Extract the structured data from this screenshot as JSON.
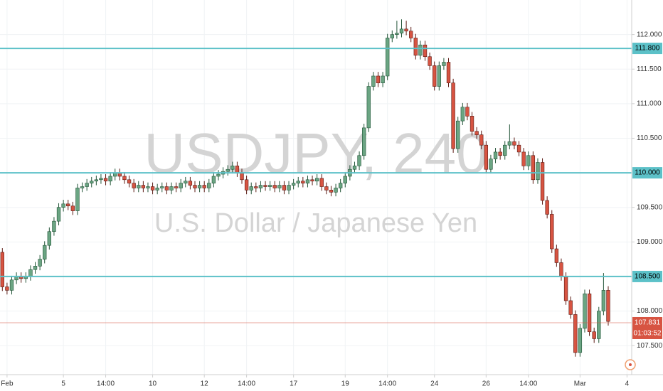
{
  "chart_data": {
    "type": "candlestick",
    "watermark_title": "USDJPY, 240",
    "watermark_subtitle": "U.S. Dollar / Japanese Yen",
    "open": [
      108.85,
      108.35,
      108.3,
      108.45,
      108.5,
      108.47,
      108.5,
      108.6,
      108.65,
      108.75,
      108.95,
      109.15,
      109.3,
      109.5,
      109.55,
      109.52,
      109.45,
      109.78,
      109.8,
      109.85,
      109.88,
      109.9,
      109.92,
      109.88,
      109.95,
      110.0,
      109.95,
      109.9,
      109.85,
      109.78,
      109.82,
      109.78,
      109.8,
      109.75,
      109.78,
      109.8,
      109.75,
      109.8,
      109.78,
      109.85,
      109.88,
      109.82,
      109.78,
      109.82,
      109.78,
      109.85,
      109.95,
      109.98,
      110.02,
      110.05,
      110.1,
      110.0,
      109.9,
      109.75,
      109.8,
      109.78,
      109.82,
      109.8,
      109.82,
      109.78,
      109.82,
      109.75,
      109.82,
      109.85,
      109.88,
      109.85,
      109.9,
      109.88,
      109.92,
      109.8,
      109.75,
      109.72,
      109.78,
      109.85,
      109.95,
      110.05,
      110.1,
      110.25,
      110.65,
      111.25,
      111.4,
      111.3,
      111.4,
      111.95,
      112.0,
      112.02,
      112.08,
      112.05,
      111.95,
      111.7,
      111.85,
      111.68,
      111.55,
      111.25,
      111.55,
      111.6,
      111.3,
      110.35,
      110.75,
      110.95,
      110.82,
      110.6,
      110.55,
      110.4,
      110.05,
      110.2,
      110.3,
      110.25,
      110.4,
      110.45,
      110.4,
      110.3,
      110.1,
      110.25,
      109.9,
      110.15,
      109.6,
      109.4,
      108.9,
      108.7,
      108.5,
      108.15,
      107.95,
      107.4,
      107.75,
      108.25,
      107.7,
      107.6,
      108.0,
      108.3
    ],
    "high": [
      108.91,
      108.41,
      108.51,
      108.56,
      108.56,
      108.56,
      108.66,
      108.71,
      108.81,
      109.01,
      109.21,
      109.36,
      109.56,
      109.61,
      109.61,
      109.58,
      109.84,
      109.86,
      109.91,
      109.94,
      109.96,
      109.98,
      109.98,
      110.01,
      110.06,
      110.06,
      110.01,
      109.96,
      109.91,
      109.88,
      109.88,
      109.86,
      109.86,
      109.84,
      109.86,
      109.86,
      109.86,
      109.86,
      109.91,
      109.94,
      109.94,
      109.88,
      109.88,
      109.88,
      109.91,
      110.01,
      110.04,
      110.08,
      110.11,
      110.16,
      110.16,
      110.06,
      109.96,
      109.86,
      109.86,
      109.88,
      109.88,
      109.88,
      109.88,
      109.88,
      109.88,
      109.88,
      109.91,
      109.94,
      109.94,
      109.96,
      109.96,
      109.98,
      109.98,
      109.86,
      109.81,
      109.84,
      109.91,
      110.01,
      110.11,
      110.16,
      110.31,
      110.71,
      111.31,
      111.46,
      111.46,
      111.46,
      112.01,
      112.06,
      112.2,
      112.22,
      112.2,
      112.11,
      112.01,
      111.91,
      111.91,
      111.74,
      111.61,
      111.61,
      111.66,
      111.66,
      111.36,
      110.81,
      111.01,
      111.01,
      110.88,
      110.66,
      110.61,
      110.46,
      110.26,
      110.36,
      110.36,
      110.46,
      110.7,
      110.51,
      110.46,
      110.36,
      110.31,
      110.31,
      110.21,
      110.21,
      109.66,
      109.46,
      108.96,
      108.76,
      108.56,
      108.21,
      108.01,
      107.81,
      108.31,
      108.31,
      107.76,
      108.06,
      108.55,
      108.36
    ],
    "low": [
      108.29,
      108.24,
      108.24,
      108.39,
      108.41,
      108.41,
      108.44,
      108.54,
      108.59,
      108.69,
      108.89,
      109.09,
      109.24,
      109.44,
      109.46,
      109.39,
      109.39,
      109.72,
      109.74,
      109.79,
      109.82,
      109.84,
      109.82,
      109.82,
      109.89,
      109.89,
      109.84,
      109.79,
      109.72,
      109.72,
      109.72,
      109.72,
      109.69,
      109.69,
      109.72,
      109.69,
      109.69,
      109.72,
      109.72,
      109.79,
      109.76,
      109.72,
      109.72,
      109.72,
      109.72,
      109.79,
      109.89,
      109.92,
      109.96,
      109.99,
      109.94,
      109.84,
      109.69,
      109.69,
      109.72,
      109.72,
      109.74,
      109.74,
      109.72,
      109.72,
      109.69,
      109.69,
      109.76,
      109.79,
      109.79,
      109.79,
      109.82,
      109.82,
      109.74,
      109.69,
      109.66,
      109.66,
      109.72,
      109.79,
      109.89,
      109.99,
      110.04,
      110.19,
      110.59,
      111.19,
      111.24,
      111.24,
      111.34,
      111.89,
      111.94,
      111.96,
      111.99,
      111.89,
      111.64,
      111.64,
      111.62,
      111.49,
      111.19,
      111.19,
      111.49,
      111.24,
      110.29,
      110.29,
      110.69,
      110.76,
      110.54,
      110.49,
      110.34,
      109.99,
      109.99,
      110.14,
      110.19,
      110.19,
      110.34,
      110.34,
      110.24,
      110.04,
      110.04,
      109.84,
      109.84,
      109.54,
      109.34,
      108.84,
      108.64,
      108.44,
      108.09,
      107.89,
      107.34,
      107.34,
      107.69,
      107.64,
      107.54,
      107.54,
      107.94,
      107.79
    ],
    "close": [
      108.35,
      108.3,
      108.45,
      108.5,
      108.47,
      108.5,
      108.6,
      108.65,
      108.75,
      108.95,
      109.15,
      109.3,
      109.5,
      109.55,
      109.52,
      109.45,
      109.78,
      109.8,
      109.85,
      109.88,
      109.9,
      109.92,
      109.88,
      109.95,
      110.0,
      109.95,
      109.9,
      109.85,
      109.78,
      109.82,
      109.78,
      109.8,
      109.75,
      109.78,
      109.8,
      109.75,
      109.8,
      109.78,
      109.85,
      109.88,
      109.82,
      109.78,
      109.82,
      109.78,
      109.85,
      109.95,
      109.98,
      110.02,
      110.05,
      110.1,
      110.0,
      109.9,
      109.75,
      109.8,
      109.78,
      109.82,
      109.8,
      109.82,
      109.78,
      109.82,
      109.75,
      109.82,
      109.85,
      109.88,
      109.85,
      109.9,
      109.88,
      109.92,
      109.8,
      109.75,
      109.72,
      109.78,
      109.85,
      109.95,
      110.05,
      110.1,
      110.25,
      110.65,
      111.25,
      111.4,
      111.3,
      111.4,
      111.95,
      112.0,
      112.02,
      112.08,
      112.05,
      111.95,
      111.7,
      111.85,
      111.68,
      111.55,
      111.25,
      111.55,
      111.6,
      111.3,
      110.35,
      110.75,
      110.95,
      110.82,
      110.6,
      110.55,
      110.4,
      110.05,
      110.2,
      110.3,
      110.25,
      110.4,
      110.45,
      110.4,
      110.3,
      110.1,
      110.25,
      109.9,
      110.15,
      109.6,
      109.4,
      108.9,
      108.7,
      108.5,
      108.15,
      107.95,
      107.4,
      107.75,
      108.25,
      107.7,
      107.6,
      108.0,
      108.3,
      107.85
    ],
    "up_color": "#6ba583",
    "down_color": "#d75442",
    "up_border": "#225437",
    "down_border": "#5b1a13",
    "ylim": [
      107.08,
      112.5
    ],
    "yticks": [
      {
        "value": 107.5,
        "label": "107.500"
      },
      {
        "value": 108,
        "label": "108.000"
      },
      {
        "value": 109,
        "label": "109.000"
      },
      {
        "value": 109.5,
        "label": "109.500"
      },
      {
        "value": 110.5,
        "label": "110.500"
      },
      {
        "value": 111,
        "label": "111.000"
      },
      {
        "value": 111.5,
        "label": "111.500"
      },
      {
        "value": 112,
        "label": "112.000"
      }
    ],
    "xlim": [
      -0.5,
      134
    ],
    "xticks": [
      {
        "value": 1,
        "label": "Feb"
      },
      {
        "value": 13,
        "label": "5"
      },
      {
        "value": 22,
        "label": "14:00"
      },
      {
        "value": 32,
        "label": "10"
      },
      {
        "value": 43,
        "label": "12"
      },
      {
        "value": 52,
        "label": "14:00"
      },
      {
        "value": 62,
        "label": "17"
      },
      {
        "value": 73,
        "label": "19"
      },
      {
        "value": 82,
        "label": "14:00"
      },
      {
        "value": 92,
        "label": "24"
      },
      {
        "value": 103,
        "label": "26"
      },
      {
        "value": 112,
        "label": "14:00"
      },
      {
        "value": 123,
        "label": "Mar"
      },
      {
        "value": 133,
        "label": "4"
      }
    ],
    "grid": true,
    "hlines": [
      {
        "value": 111.8,
        "label": "111.800"
      },
      {
        "value": 110,
        "label": "110.000"
      },
      {
        "value": 108.5,
        "label": "108.500"
      }
    ],
    "hline_color": "#5cc1c8",
    "last_price": {
      "value": 107.831,
      "label": "107.831"
    },
    "countdown": "01:03:52",
    "last_price_color": "#d75442"
  }
}
